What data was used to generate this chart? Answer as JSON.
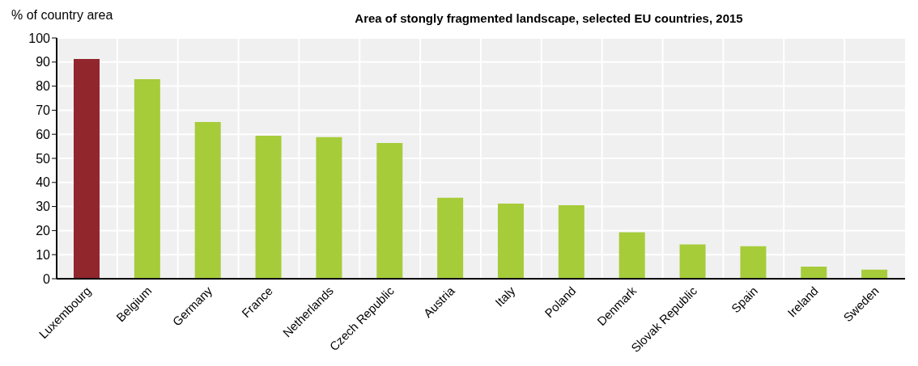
{
  "chart_data": {
    "type": "bar",
    "title": "Area of stongly fragmented landscape, selected EU countries, 2015",
    "ylabel": "% of country area",
    "categories": [
      "Luxembourg",
      "Belgium",
      "Germany",
      "France",
      "Netherlands",
      "Czech Republic",
      "Austria",
      "Italy",
      "Poland",
      "Denmark",
      "Slovak Republic",
      "Spain",
      "Ireland",
      "Sweden"
    ],
    "values": [
      91.3,
      82.9,
      65.1,
      59.4,
      58.8,
      56.4,
      33.6,
      31.2,
      30.5,
      19.3,
      14.3,
      13.5,
      5.0,
      3.8
    ],
    "colors": [
      "#92262d",
      "#a6cc3a",
      "#a6cc3a",
      "#a6cc3a",
      "#a6cc3a",
      "#a6cc3a",
      "#a6cc3a",
      "#a6cc3a",
      "#a6cc3a",
      "#a6cc3a",
      "#a6cc3a",
      "#a6cc3a",
      "#a6cc3a",
      "#a6cc3a"
    ],
    "ylim": [
      0,
      100
    ],
    "yticks": [
      0,
      10,
      20,
      30,
      40,
      50,
      60,
      70,
      80,
      90,
      100
    ],
    "grid": true
  }
}
